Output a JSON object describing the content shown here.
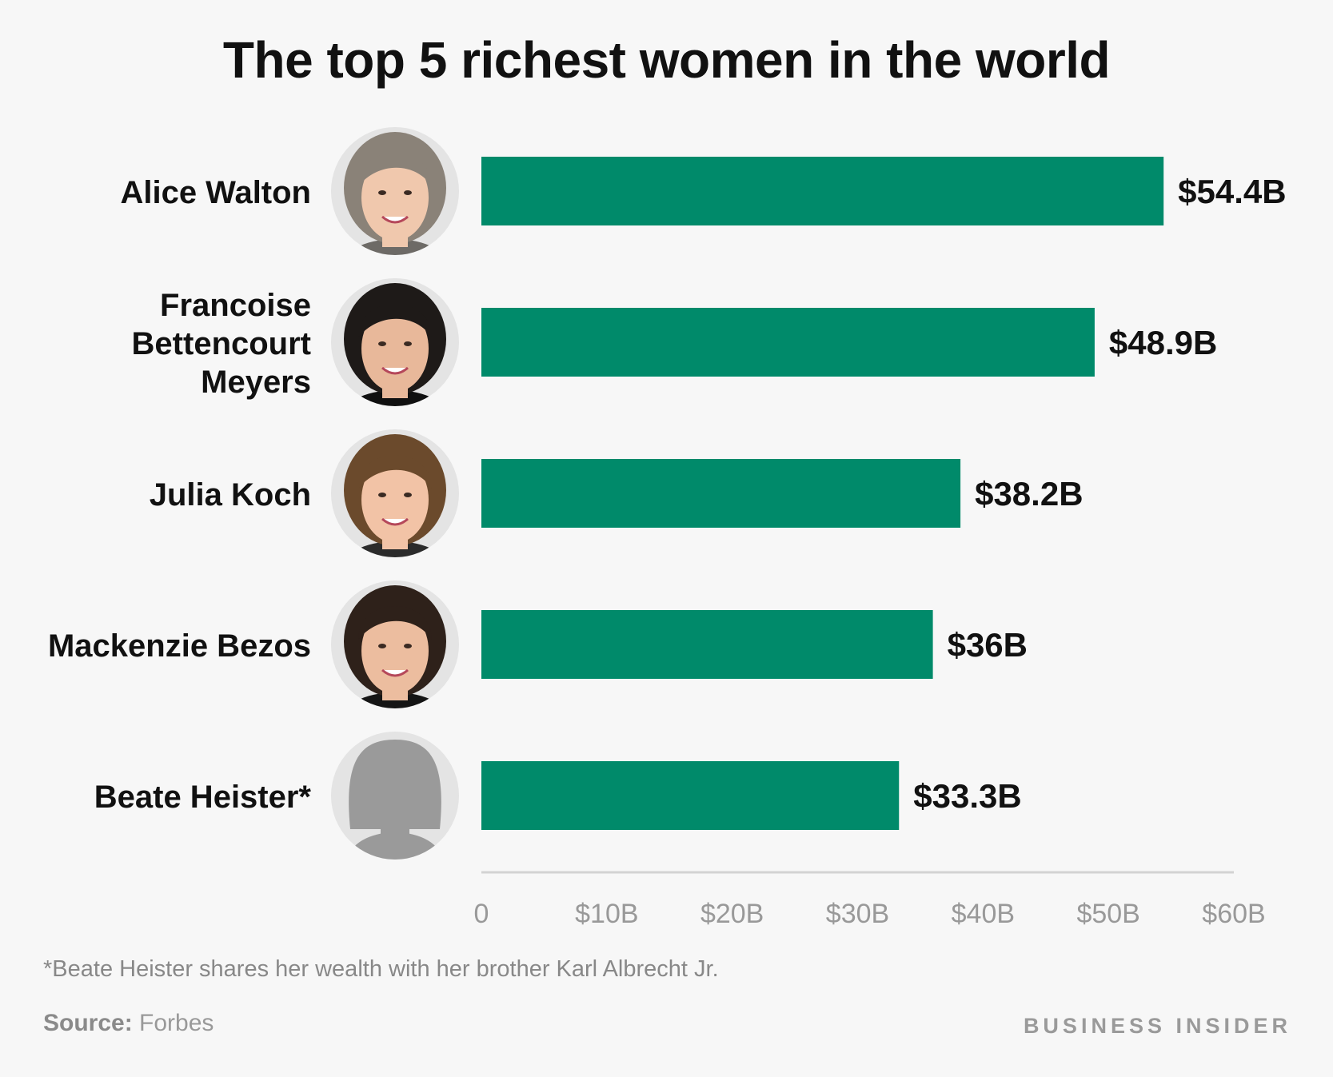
{
  "chart_data": {
    "type": "bar",
    "orientation": "horizontal",
    "title": "The top 5 richest women in the world",
    "categories": [
      [
        "Alice Walton"
      ],
      [
        "Francoise",
        "Bettencourt",
        "Meyers"
      ],
      [
        "Julia Koch"
      ],
      [
        "Mackenzie Bezos"
      ],
      [
        "Beate Heister*"
      ]
    ],
    "values": [
      54.4,
      48.9,
      38.2,
      36,
      33.3
    ],
    "data_labels": [
      "$54.4B",
      "$48.9B",
      "$38.2B",
      "$36B",
      "$33.3B"
    ],
    "x_ticks": [
      0,
      10,
      20,
      30,
      40,
      50,
      60
    ],
    "x_tick_labels": [
      "0",
      "$10B",
      "$20B",
      "$30B",
      "$40B",
      "$50B",
      "$60B"
    ],
    "xlim": [
      0,
      60
    ],
    "grid": false,
    "bar_color": "#008a6a",
    "icons": [
      "portrait-alice-walton-icon",
      "portrait-francoise-bettencourt-meyers-icon",
      "portrait-julia-koch-icon",
      "portrait-mackenzie-bezos-icon",
      "silhouette-placeholder-icon"
    ]
  },
  "footnote": "*Beate Heister shares her wealth with her brother Karl Albrecht Jr.",
  "source": {
    "label": "Source:",
    "value": " Forbes"
  },
  "brand": "BUSINESS INSIDER"
}
